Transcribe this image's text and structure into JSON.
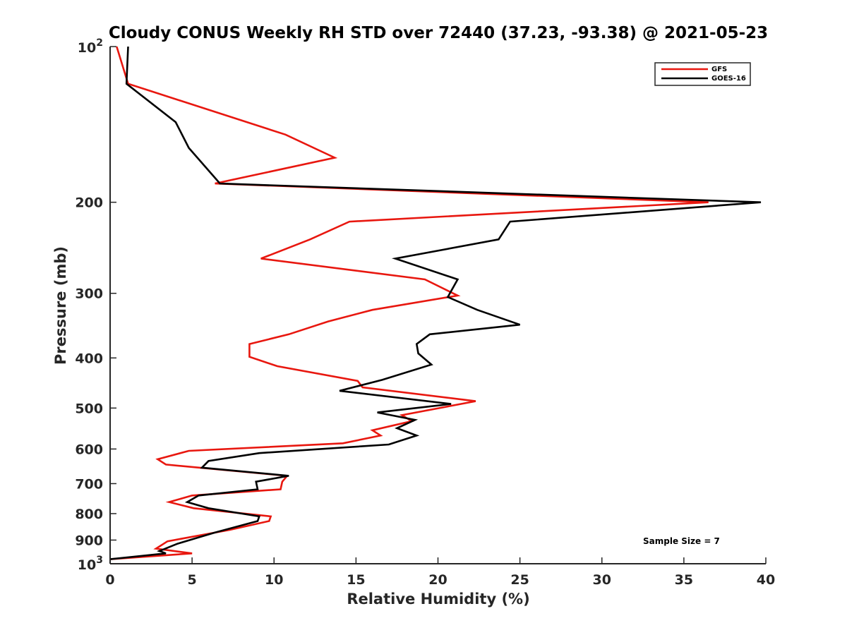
{
  "chart_data": {
    "type": "line",
    "title": "Cloudy CONUS Weekly RH STD over 72440 (37.23, -93.38) @ 2021-05-23",
    "xlabel": "Relative Humidity (%)",
    "ylabel": "Pressure (mb)",
    "xlim": [
      0,
      40
    ],
    "ylim": [
      100,
      1000
    ],
    "yscale": "log",
    "y_reversed": true,
    "xticks": [
      "0",
      "5",
      "10",
      "15",
      "20",
      "25",
      "30",
      "35",
      "40"
    ],
    "yticks": [
      {
        "value": 100,
        "base": "10",
        "exp": "2"
      },
      {
        "value": 200,
        "label": "200"
      },
      {
        "value": 300,
        "label": "300"
      },
      {
        "value": 400,
        "label": "400"
      },
      {
        "value": 500,
        "label": "500"
      },
      {
        "value": 600,
        "label": "600"
      },
      {
        "value": 700,
        "label": "700"
      },
      {
        "value": 800,
        "label": "800"
      },
      {
        "value": 900,
        "label": "900"
      },
      {
        "value": 1000,
        "base": "10",
        "exp": "3"
      }
    ],
    "grid": false,
    "legend_position": "top-right",
    "annotation": "Sample Size = 7",
    "series": [
      {
        "name": "GFS",
        "color": "#e8170f",
        "points": [
          [
            0.4,
            100
          ],
          [
            1.1,
            118
          ],
          [
            10.7,
            148
          ],
          [
            13.7,
            164
          ],
          [
            6.4,
            184
          ],
          [
            36.5,
            200
          ],
          [
            14.6,
            218
          ],
          [
            12.2,
            236
          ],
          [
            9.2,
            257
          ],
          [
            19.2,
            282
          ],
          [
            21.2,
            303
          ],
          [
            16.0,
            323
          ],
          [
            13.3,
            340
          ],
          [
            10.9,
            360
          ],
          [
            8.5,
            376
          ],
          [
            8.5,
            398
          ],
          [
            10.2,
            415
          ],
          [
            15.1,
            443
          ],
          [
            15.4,
            456
          ],
          [
            22.3,
            485
          ],
          [
            17.8,
            516
          ],
          [
            18.4,
            530
          ],
          [
            16.0,
            552
          ],
          [
            16.5,
            565
          ],
          [
            14.2,
            585
          ],
          [
            4.8,
            605
          ],
          [
            2.9,
            628
          ],
          [
            3.4,
            643
          ],
          [
            10.8,
            676
          ],
          [
            10.5,
            694
          ],
          [
            10.4,
            718
          ],
          [
            5.0,
            738
          ],
          [
            3.6,
            760
          ],
          [
            5.1,
            781
          ],
          [
            9.8,
            810
          ],
          [
            9.7,
            827
          ],
          [
            7.3,
            860
          ],
          [
            3.5,
            905
          ],
          [
            2.8,
            935
          ],
          [
            5.0,
            955
          ],
          [
            0.0,
            980
          ]
        ]
      },
      {
        "name": "GOES-16",
        "color": "#000000",
        "points": [
          [
            1.1,
            100
          ],
          [
            1.0,
            118
          ],
          [
            4.0,
            140
          ],
          [
            4.8,
            157
          ],
          [
            6.7,
            184
          ],
          [
            39.7,
            200
          ],
          [
            24.4,
            218
          ],
          [
            23.7,
            236
          ],
          [
            17.4,
            257
          ],
          [
            21.2,
            282
          ],
          [
            20.6,
            305
          ],
          [
            22.4,
            323
          ],
          [
            25.0,
            345
          ],
          [
            19.5,
            360
          ],
          [
            18.7,
            376
          ],
          [
            18.8,
            392
          ],
          [
            19.6,
            412
          ],
          [
            16.6,
            441
          ],
          [
            14.0,
            463
          ],
          [
            20.8,
            491
          ],
          [
            16.3,
            510
          ],
          [
            18.6,
            527
          ],
          [
            17.5,
            547
          ],
          [
            18.7,
            565
          ],
          [
            17.0,
            588
          ],
          [
            9.1,
            611
          ],
          [
            6.0,
            633
          ],
          [
            5.6,
            652
          ],
          [
            10.9,
            676
          ],
          [
            8.9,
            694
          ],
          [
            9.0,
            718
          ],
          [
            5.4,
            738
          ],
          [
            4.7,
            760
          ],
          [
            6.0,
            781
          ],
          [
            9.1,
            810
          ],
          [
            9.0,
            827
          ],
          [
            6.4,
            870
          ],
          [
            4.1,
            915
          ],
          [
            3.0,
            945
          ],
          [
            3.4,
            955
          ],
          [
            0.0,
            980
          ]
        ]
      }
    ]
  }
}
